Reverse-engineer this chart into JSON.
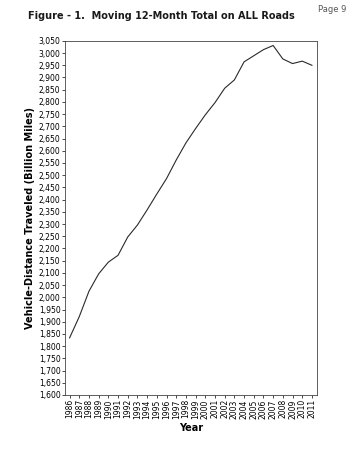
{
  "title": "Figure - 1.  Moving 12-Month Total on ALL Roads",
  "page_label": "Page 9",
  "xlabel": "Year",
  "ylabel": "Vehicle-Distance Traveled (Billion Miles)",
  "years": [
    1986,
    1987,
    1988,
    1989,
    1990,
    1991,
    1992,
    1993,
    1994,
    1995,
    1996,
    1997,
    1998,
    1999,
    2000,
    2001,
    2002,
    2003,
    2004,
    2005,
    2006,
    2007,
    2008,
    2009,
    2010,
    2011
  ],
  "values": [
    1834,
    1921,
    2025,
    2096,
    2144,
    2172,
    2247,
    2296,
    2358,
    2423,
    2486,
    2562,
    2632,
    2691,
    2747,
    2797,
    2856,
    2890,
    2964,
    2989,
    3014,
    3031,
    2976,
    2957,
    2967,
    2950
  ],
  "ylim_min": 1600,
  "ylim_max": 3050,
  "ytick_step": 50,
  "line_color": "#2a2a2a",
  "background_color": "#ffffff",
  "title_fontsize": 7.0,
  "axis_label_fontsize": 7.0,
  "tick_fontsize": 5.5,
  "page_fontsize": 6.0
}
